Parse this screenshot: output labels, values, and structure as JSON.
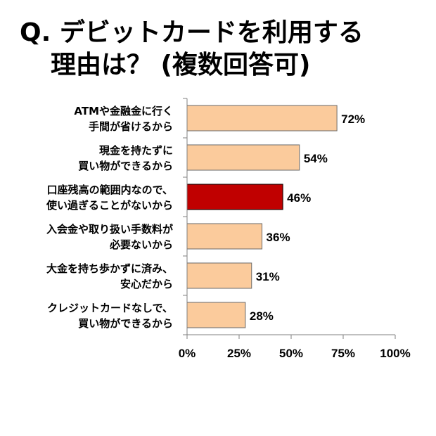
{
  "title_lines": [
    "Q. デビットカードを利用する",
    "理由は？ (複数回答可)"
  ],
  "chart_data": {
    "type": "bar",
    "orientation": "horizontal",
    "categories": [
      [
        "ATMや金融金に行く",
        "手間が省けるから"
      ],
      [
        "現金を持たずに",
        "買い物ができるから"
      ],
      [
        "口座残高の範囲内なので、",
        "使い過ぎることがないから"
      ],
      [
        "入会金や取り扱い手数料が",
        "必要ないから"
      ],
      [
        "大金を持ち歩かずに済み、",
        "安心だから"
      ],
      [
        "クレジットカードなしで、",
        "買い物ができるから"
      ]
    ],
    "values": [
      72,
      54,
      46,
      36,
      31,
      28
    ],
    "value_labels": [
      "72%",
      "54%",
      "46%",
      "36%",
      "31%",
      "28%"
    ],
    "highlight_index": 2,
    "xlim": [
      0,
      100
    ],
    "xticks": [
      0,
      25,
      50,
      75,
      100
    ],
    "xtick_labels": [
      "0%",
      "25%",
      "50%",
      "75%",
      "100%"
    ],
    "grid": false,
    "legend": "none",
    "colors": {
      "bar": "#fbcb9c",
      "highlight": "#c00000",
      "bar_stroke": "#6a6a6a",
      "axis": "#808080"
    }
  }
}
